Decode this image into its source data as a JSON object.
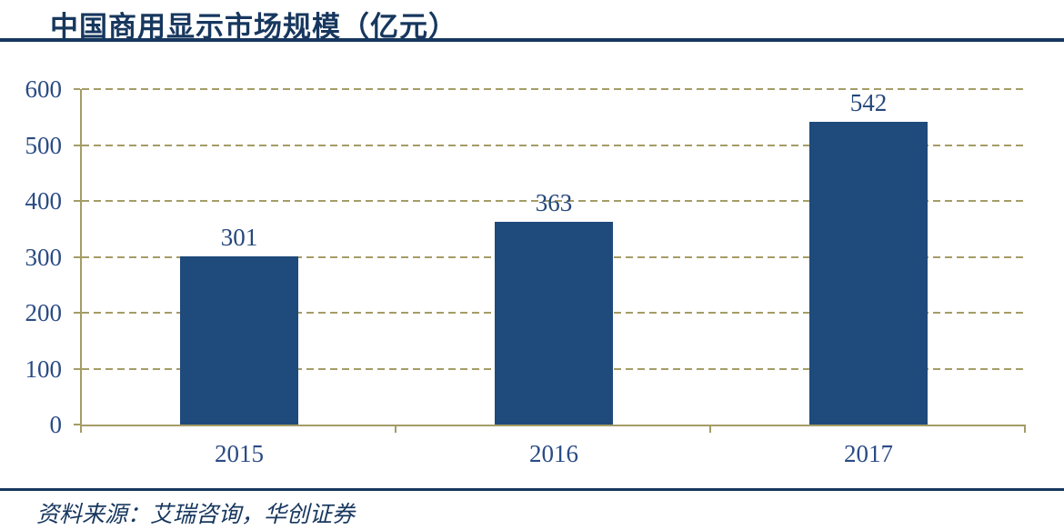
{
  "page": {
    "title": "中国商用显示市场规模（亿元）",
    "source": "资料来源：艾瑞咨询，华创证券"
  },
  "chart_data": {
    "type": "bar",
    "title": "中国商用显示市场规模（亿元）",
    "categories": [
      "2015",
      "2016",
      "2017"
    ],
    "values": [
      301,
      363,
      542
    ],
    "xlabel": "",
    "ylabel": "",
    "ylim": [
      0,
      600
    ],
    "yticks": [
      0,
      100,
      200,
      300,
      400,
      500,
      600
    ],
    "grid": "horizontal-dashed",
    "legend": "none",
    "bar_value_labels_shown": true,
    "source": "资料来源：艾瑞咨询，华创证券",
    "colors": {
      "bar_fill": "#1F4A7C",
      "axis_line": "#A59C66",
      "gridline": "#A59C66",
      "axis_tick_label": "#2A4B84",
      "bar_value_label": "#25477C",
      "title_text": "#17375E",
      "divider_rule": "#17375E"
    }
  }
}
